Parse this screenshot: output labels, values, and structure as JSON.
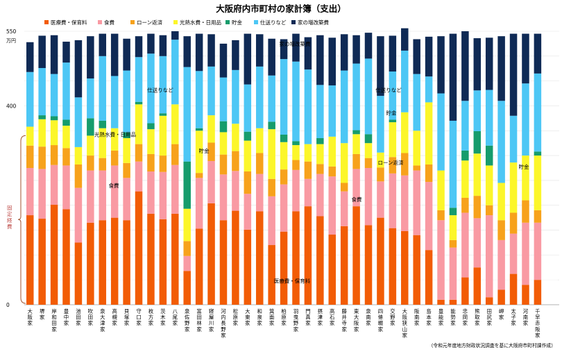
{
  "chart_data": {
    "type": "bar",
    "stacked": true,
    "title": "大阪府内市町村の家計簿（支出）",
    "unit_label": "万円",
    "yticks": [
      0,
      400,
      550
    ],
    "ylim": [
      0,
      550
    ],
    "legend_position": "top",
    "bracket_label": "固定経費",
    "source_note": "（令和元年度地方財政状況調査を基に大阪府市町村課作成）",
    "categories": [
      "大阪家",
      "堺家",
      "岸和田家",
      "豊中家",
      "池田家",
      "吹田家",
      "泉大津家",
      "高槻家",
      "貝塚家",
      "守口家",
      "枚方家",
      "茨木家",
      "八尾家",
      "泉佐野家",
      "富田林家",
      "寝屋川家",
      "河内長野家",
      "松原家",
      "大東家",
      "和泉家",
      "箕面家",
      "柏原家",
      "羽曳野家",
      "門真家",
      "摂津家",
      "高石家",
      "藤井寺家",
      "東大阪家",
      "泉南家",
      "四條畷家",
      "交野家",
      "大阪狭山家",
      "阪南家",
      "島本家",
      "豊能家",
      "能勢家",
      "忠岡家",
      "熊取家",
      "田尻家",
      "岬家",
      "太子家",
      "河南家",
      "千早赤阪家"
    ],
    "series": [
      {
        "name": "医療費・保育料",
        "color": "#f25c05",
        "values": [
          180,
          173,
          201,
          192,
          125,
          165,
          170,
          175,
          170,
          228,
          183,
          172,
          183,
          68,
          153,
          204,
          170,
          189,
          151,
          188,
          120,
          147,
          188,
          198,
          178,
          141,
          158,
          198,
          160,
          175,
          154,
          148,
          140,
          110,
          10,
          10,
          55,
          75,
          15,
          30,
          62,
          40,
          50
        ]
      },
      {
        "name": "食費",
        "color": "#f99aa3",
        "values": [
          95,
          100,
          80,
          88,
          110,
          105,
          100,
          105,
          85,
          60,
          85,
          95,
          98,
          30,
          102,
          85,
          92,
          80,
          72,
          75,
          98,
          95,
          83,
          55,
          85,
          117,
          70,
          75,
          115,
          73,
          110,
          112,
          130,
          137,
          160,
          105,
          130,
          99,
          165,
          100,
          81,
          125,
          115
        ]
      },
      {
        "name": "ローン返済",
        "color": "#f7a21b",
        "values": [
          45,
          45,
          40,
          35,
          47,
          30,
          25,
          30,
          30,
          35,
          35,
          33,
          42,
          30,
          10,
          37,
          40,
          40,
          45,
          42,
          35,
          30,
          20,
          35,
          20,
          20,
          17,
          30,
          20,
          28,
          33,
          45,
          10,
          35,
          20,
          15,
          30,
          45,
          20,
          40,
          42,
          45,
          25
        ]
      },
      {
        "name": "光熱水費・日用品",
        "color": "#fcf62a",
        "values": [
          38,
          55,
          50,
          45,
          35,
          40,
          60,
          45,
          50,
          80,
          50,
          80,
          80,
          65,
          85,
          55,
          45,
          55,
          62,
          50,
          100,
          55,
          30,
          35,
          40,
          60,
          80,
          40,
          30,
          30,
          70,
          82,
          70,
          125,
          80,
          50,
          75,
          85,
          80,
          75,
          101,
          90,
          110
        ]
      },
      {
        "name": "貯金",
        "color": "#169c6c",
        "values": [
          0,
          8,
          8,
          12,
          0,
          35,
          15,
          0,
          12,
          5,
          12,
          5,
          0,
          95,
          5,
          0,
          22,
          0,
          18,
          0,
          15,
          15,
          8,
          0,
          12,
          0,
          0,
          8,
          18,
          0,
          5,
          0,
          0,
          0,
          0,
          15,
          20,
          45,
          40,
          0,
          0,
          0,
          8
        ]
      },
      {
        "name": "仕送りなど",
        "color": "#4dc7f5",
        "values": [
          110,
          95,
          85,
          115,
          100,
          80,
          130,
          105,
          124,
          90,
          140,
          115,
          130,
          190,
          115,
          98,
          88,
          108,
          95,
          124,
          93,
          152,
          160,
          150,
          107,
          103,
          146,
          134,
          152,
          114,
          97,
          124,
          114,
          52,
          155,
          175,
          100,
          82,
          112,
          165,
          94,
          145,
          157
        ]
      },
      {
        "name": "家の増改築費",
        "color": "#0f2a55",
        "values": [
          60,
          65,
          78,
          42,
          115,
          85,
          45,
          85,
          64,
          42,
          40,
          42,
          17,
          62,
          75,
          65,
          68,
          60,
          102,
          65,
          74,
          40,
          56,
          65,
          100,
          96,
          73,
          57,
          52,
          120,
          72,
          45,
          70,
          80,
          115,
          175,
          140,
          105,
          105,
          130,
          165,
          100,
          80
        ]
      }
    ],
    "annotations": [
      {
        "text": "家の増改築費",
        "value": 525
      },
      {
        "text": "仕送りなど",
        "value": 432
      },
      {
        "text": "光熱水費・日用品",
        "value": 343
      },
      {
        "text": "貯金",
        "value": 386
      },
      {
        "text": "ローン返済",
        "value": 286
      },
      {
        "text": "貯金",
        "value": 278
      },
      {
        "text": "貯金",
        "value": 310
      },
      {
        "text": "食費",
        "value": 240
      },
      {
        "text": "食費",
        "value": 212
      },
      {
        "text": "医療費・保育料",
        "value": 48
      }
    ]
  }
}
